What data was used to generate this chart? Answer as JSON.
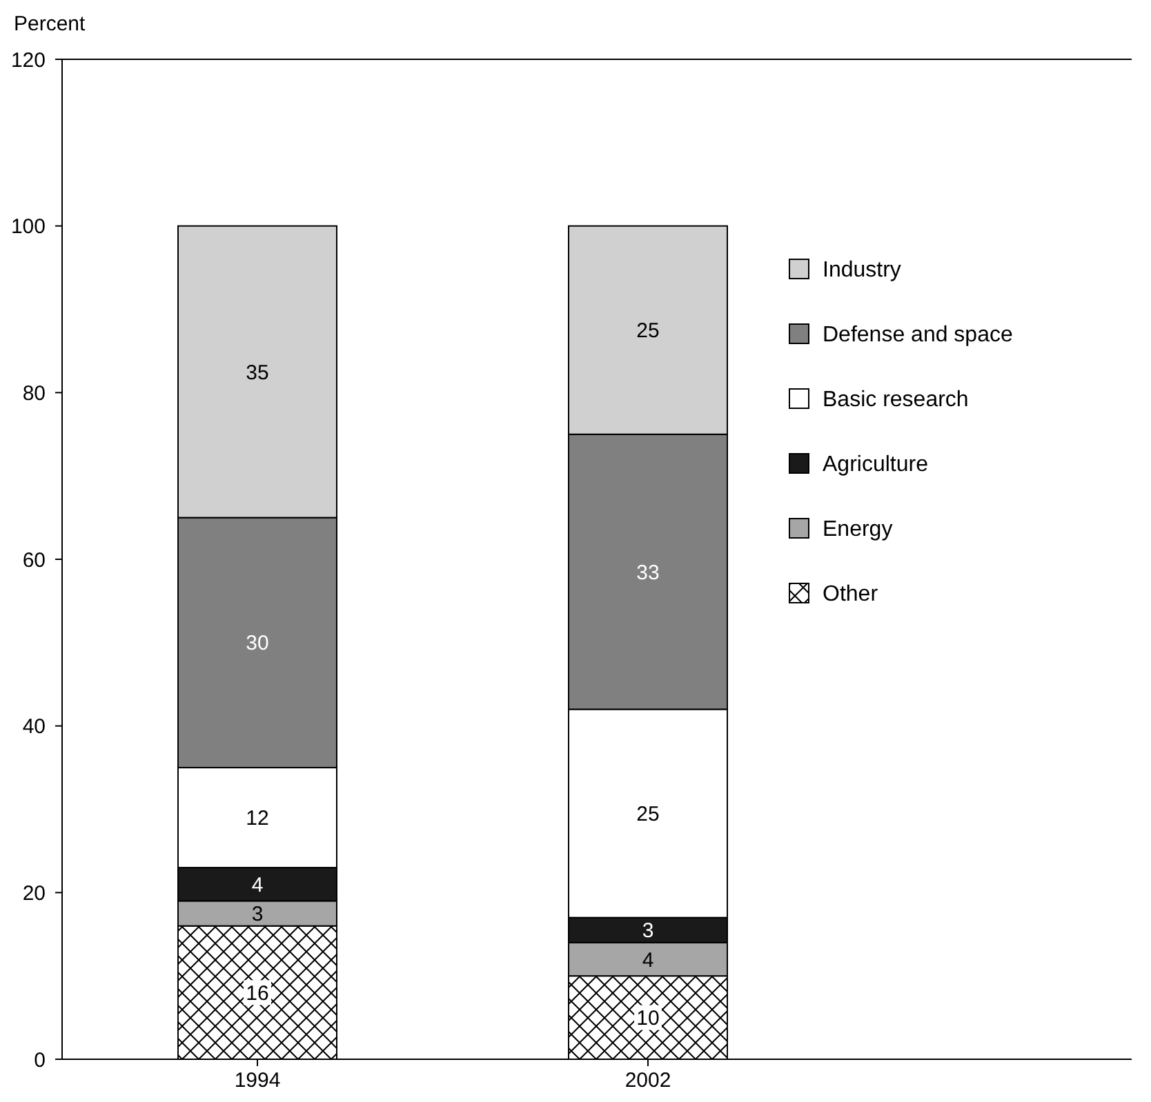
{
  "chart_data": {
    "type": "bar",
    "ylabel": "Percent",
    "categories": [
      "1994",
      "2002"
    ],
    "stacked": true,
    "series": [
      {
        "name": "Other",
        "color": "#000000",
        "values": [
          16,
          10
        ]
      },
      {
        "name": "Energy",
        "color": "#a6a6a6",
        "values": [
          3,
          4
        ]
      },
      {
        "name": "Agriculture",
        "color": "#1a1a1a",
        "values": [
          4,
          3
        ]
      },
      {
        "name": "Basic research",
        "color": "#ffffff",
        "values": [
          12,
          25
        ]
      },
      {
        "name": "Defense and space",
        "color": "#808080",
        "values": [
          30,
          33
        ]
      },
      {
        "name": "Industry",
        "color": "#d0d0d0",
        "values": [
          35,
          25
        ]
      }
    ],
    "ylim": [
      0,
      120
    ],
    "yticks": [
      0,
      20,
      40,
      60,
      80,
      100,
      120
    ],
    "data_labels": true,
    "legend": "right",
    "grid": false
  }
}
